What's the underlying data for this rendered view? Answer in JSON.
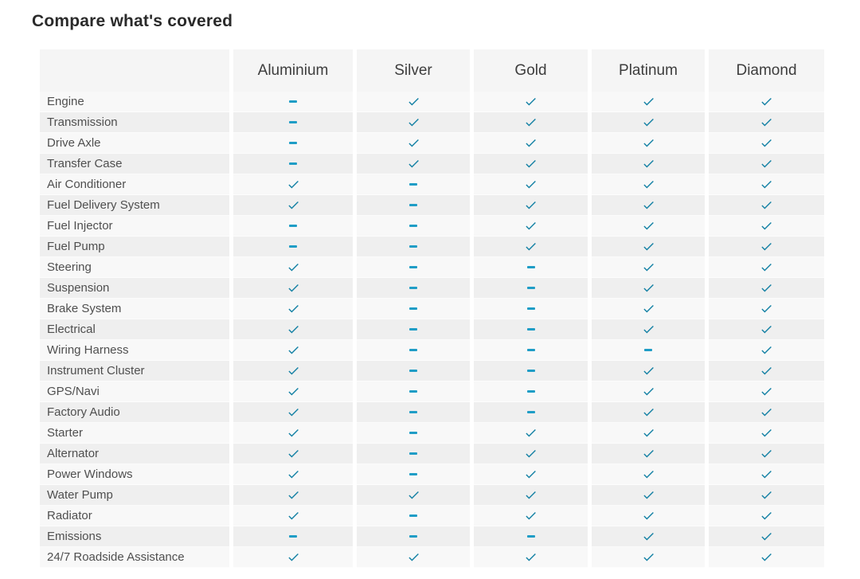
{
  "page": {
    "title": "Compare what's covered"
  },
  "colors": {
    "check": "#1280a4",
    "dash": "#1f9dc6",
    "header_bg": "#f5f5f5",
    "row_odd": "#f8f8f8",
    "row_even": "#efefef"
  },
  "icons": {
    "check_icon": "✔",
    "dash_icon": "–"
  },
  "table": {
    "columns": [
      "Aluminium",
      "Silver",
      "Gold",
      "Platinum",
      "Diamond"
    ],
    "rows": [
      {
        "label": "Engine",
        "coverage": [
          "dash",
          "check",
          "check",
          "check",
          "check"
        ]
      },
      {
        "label": "Transmission",
        "coverage": [
          "dash",
          "check",
          "check",
          "check",
          "check"
        ]
      },
      {
        "label": "Drive Axle",
        "coverage": [
          "dash",
          "check",
          "check",
          "check",
          "check"
        ]
      },
      {
        "label": "Transfer Case",
        "coverage": [
          "dash",
          "check",
          "check",
          "check",
          "check"
        ]
      },
      {
        "label": "Air Conditioner",
        "coverage": [
          "check",
          "dash",
          "check",
          "check",
          "check"
        ]
      },
      {
        "label": "Fuel Delivery System",
        "coverage": [
          "check",
          "dash",
          "check",
          "check",
          "check"
        ]
      },
      {
        "label": "Fuel Injector",
        "coverage": [
          "dash",
          "dash",
          "check",
          "check",
          "check"
        ]
      },
      {
        "label": "Fuel Pump",
        "coverage": [
          "dash",
          "dash",
          "check",
          "check",
          "check"
        ]
      },
      {
        "label": "Steering",
        "coverage": [
          "check",
          "dash",
          "dash",
          "check",
          "check"
        ]
      },
      {
        "label": "Suspension",
        "coverage": [
          "check",
          "dash",
          "dash",
          "check",
          "check"
        ]
      },
      {
        "label": "Brake System",
        "coverage": [
          "check",
          "dash",
          "dash",
          "check",
          "check"
        ]
      },
      {
        "label": "Electrical",
        "coverage": [
          "check",
          "dash",
          "dash",
          "check",
          "check"
        ]
      },
      {
        "label": "Wiring Harness",
        "coverage": [
          "check",
          "dash",
          "dash",
          "dash",
          "check"
        ]
      },
      {
        "label": "Instrument Cluster",
        "coverage": [
          "check",
          "dash",
          "dash",
          "check",
          "check"
        ]
      },
      {
        "label": "GPS/Navi",
        "coverage": [
          "check",
          "dash",
          "dash",
          "check",
          "check"
        ]
      },
      {
        "label": "Factory Audio",
        "coverage": [
          "check",
          "dash",
          "dash",
          "check",
          "check"
        ]
      },
      {
        "label": "Starter",
        "coverage": [
          "check",
          "dash",
          "check",
          "check",
          "check"
        ]
      },
      {
        "label": "Alternator",
        "coverage": [
          "check",
          "dash",
          "check",
          "check",
          "check"
        ]
      },
      {
        "label": "Power Windows",
        "coverage": [
          "check",
          "dash",
          "check",
          "check",
          "check"
        ]
      },
      {
        "label": "Water Pump",
        "coverage": [
          "check",
          "check",
          "check",
          "check",
          "check"
        ]
      },
      {
        "label": "Radiator",
        "coverage": [
          "check",
          "dash",
          "check",
          "check",
          "check"
        ]
      },
      {
        "label": "Emissions",
        "coverage": [
          "dash",
          "dash",
          "dash",
          "check",
          "check"
        ]
      },
      {
        "label": "24/7 Roadside Assistance",
        "coverage": [
          "check",
          "check",
          "check",
          "check",
          "check"
        ]
      }
    ]
  }
}
